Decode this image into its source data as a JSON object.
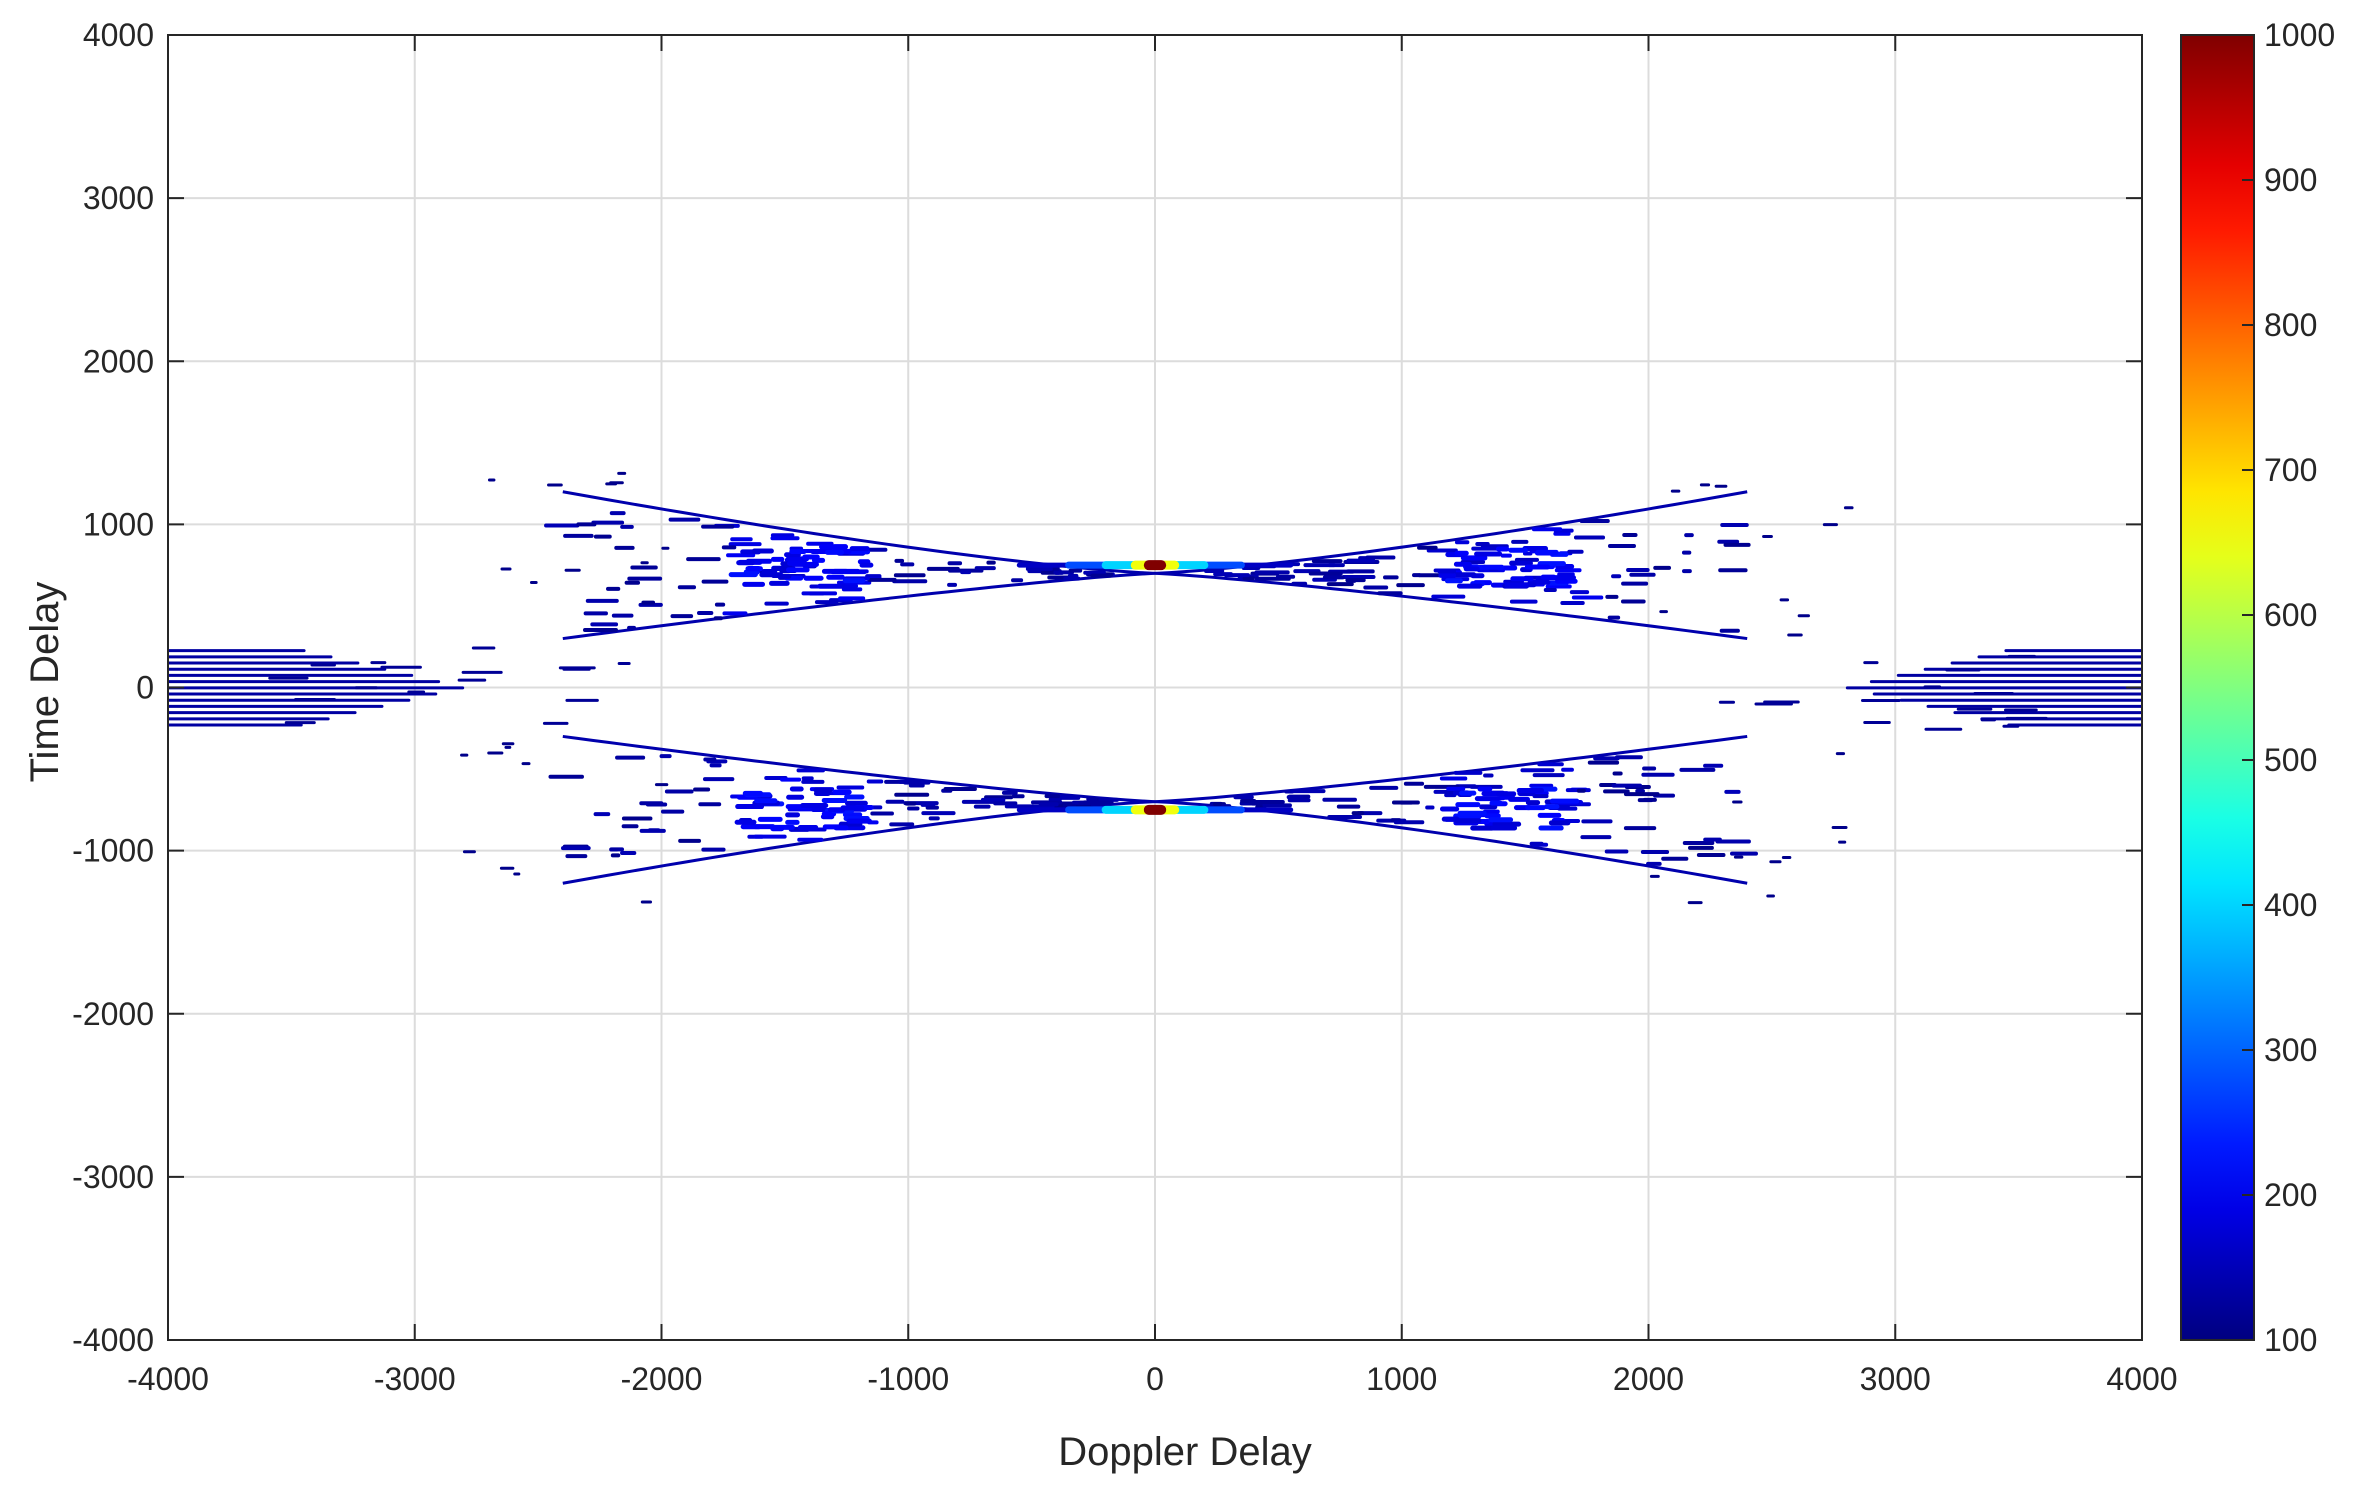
{
  "chart_data": {
    "type": "heatmap",
    "xlabel": "Doppler Delay",
    "ylabel": "Time Delay",
    "xlim": [
      -4000,
      4000
    ],
    "ylim": [
      -4000,
      4000
    ],
    "xticks": [
      -4000,
      -3000,
      -2000,
      -1000,
      0,
      1000,
      2000,
      3000,
      4000
    ],
    "yticks": [
      -4000,
      -3000,
      -2000,
      -1000,
      0,
      1000,
      2000,
      3000,
      4000
    ],
    "grid": true,
    "colorbar": {
      "colormap": "jet",
      "min": 100,
      "max": 1000,
      "ticks": [
        100,
        200,
        300,
        400,
        500,
        600,
        700,
        800,
        900,
        1000
      ]
    },
    "structure": {
      "peaks": [
        {
          "x": 0,
          "y": 750,
          "value": 1000
        },
        {
          "x": 0,
          "y": -750,
          "value": 1000
        }
      ],
      "lobe_edges": [
        {
          "from": [
            0,
            700
          ],
          "to": [
            -2400,
            1200
          ]
        },
        {
          "from": [
            0,
            700
          ],
          "to": [
            2400,
            1200
          ]
        },
        {
          "from": [
            0,
            700
          ],
          "to": [
            -2400,
            300
          ]
        },
        {
          "from": [
            0,
            700
          ],
          "to": [
            2400,
            300
          ]
        },
        {
          "from": [
            0,
            -700
          ],
          "to": [
            -2400,
            -1200
          ]
        },
        {
          "from": [
            0,
            -700
          ],
          "to": [
            2400,
            -1200
          ]
        },
        {
          "from": [
            0,
            -700
          ],
          "to": [
            -2400,
            -300
          ]
        },
        {
          "from": [
            0,
            -700
          ],
          "to": [
            2400,
            -300
          ]
        }
      ],
      "edge_bands": [
        {
          "x_range": [
            -4000,
            -2800
          ],
          "y_range": [
            -250,
            250
          ]
        },
        {
          "x_range": [
            2800,
            4000
          ],
          "y_range": [
            -250,
            250
          ]
        }
      ],
      "background_value": 100
    }
  }
}
